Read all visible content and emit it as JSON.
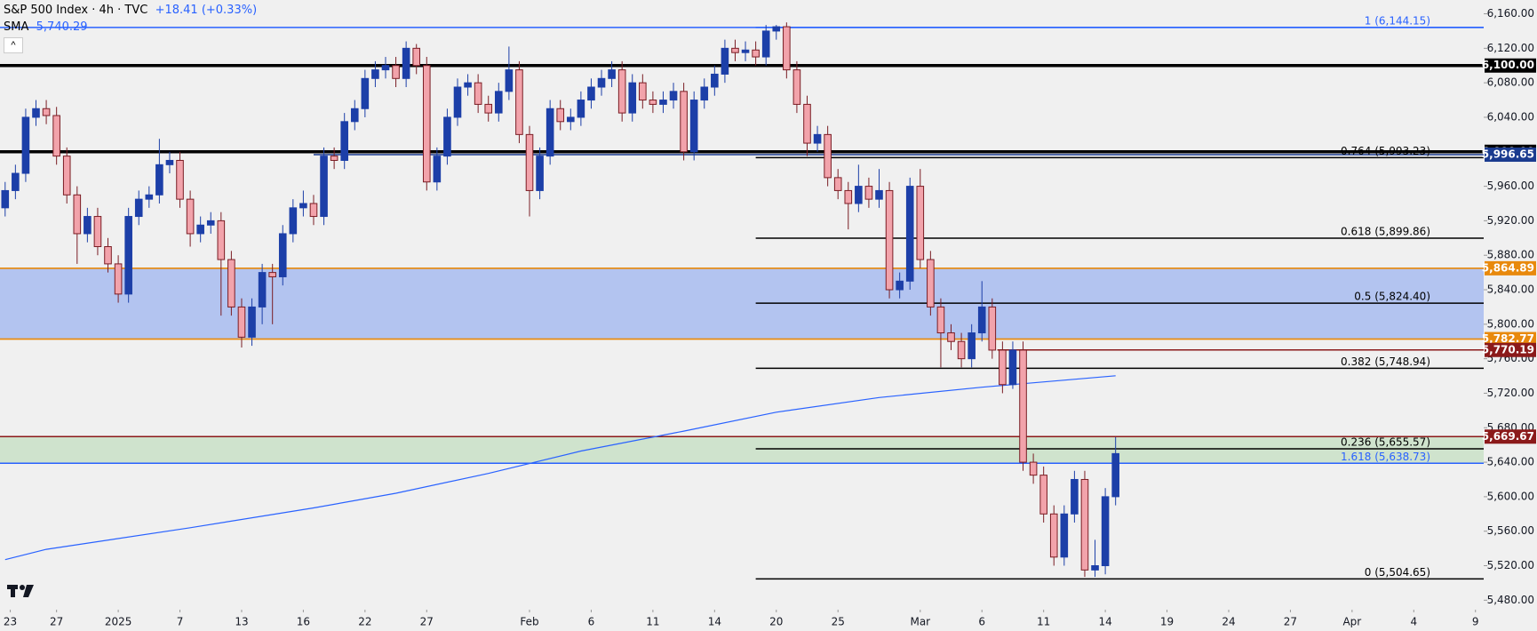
{
  "chart_data": {
    "type": "candlestick",
    "title": "S&P 500 Index · 4h · TVC",
    "change": "+18.41 (+0.33%)",
    "up_color": "#1c3fa8",
    "down_color": "#f2a3ab",
    "down_edge": "#7a1d24",
    "x": [
      0,
      1,
      2,
      3,
      4,
      5,
      6,
      7,
      8,
      9,
      10,
      11,
      12,
      13,
      14,
      15,
      16,
      17,
      18,
      19,
      20,
      21,
      22,
      23,
      24,
      25,
      26,
      27,
      28,
      29,
      30,
      31,
      32,
      33,
      34,
      35,
      36,
      37,
      38,
      39,
      40,
      41,
      42,
      43,
      44,
      45,
      46,
      47,
      48,
      49,
      50,
      51,
      52,
      53,
      54,
      55,
      56,
      57,
      58,
      59,
      60,
      61,
      62,
      63,
      64,
      65,
      66,
      67,
      68,
      69,
      70,
      71,
      72,
      73,
      74,
      75,
      76,
      77,
      78,
      79,
      80,
      81,
      82,
      83,
      84,
      85,
      86,
      87,
      88,
      89,
      90,
      91,
      92,
      93,
      94,
      95,
      96,
      97,
      98,
      99,
      100,
      101,
      102,
      103,
      104,
      105,
      106,
      107,
      108
    ],
    "open": [
      5935,
      5955,
      5975,
      6040,
      6050,
      6042,
      5995,
      5950,
      5905,
      5925,
      5890,
      5870,
      5835,
      5925,
      5945,
      5950,
      5985,
      5990,
      5945,
      5905,
      5915,
      5920,
      5875,
      5820,
      5785,
      5820,
      5860,
      5855,
      5905,
      5935,
      5940,
      5925,
      5995,
      5990,
      6035,
      6050,
      6085,
      6095,
      6100,
      6085,
      6120,
      6100,
      5965,
      5995,
      6040,
      6075,
      6080,
      6055,
      6045,
      6070,
      6095,
      6020,
      5955,
      5995,
      6050,
      6035,
      6040,
      6060,
      6075,
      6085,
      6095,
      6045,
      6080,
      6060,
      6055,
      6060,
      6070,
      6000,
      6060,
      6075,
      6090,
      6120,
      6115,
      6118,
      6110,
      6140,
      6145,
      6095,
      6055,
      6010,
      6020,
      5970,
      5955,
      5940,
      5960,
      5945,
      5955,
      5840,
      5850,
      5960,
      5875,
      5820,
      5790,
      5780,
      5760,
      5790,
      5820,
      5770,
      5730,
      5770,
      5640,
      5625,
      5580,
      5530,
      5580,
      5620,
      5515,
      5520,
      5600
    ],
    "high": [
      5965,
      5985,
      6050,
      6060,
      6060,
      6052,
      6005,
      5960,
      5935,
      5935,
      5900,
      5880,
      5935,
      5955,
      5960,
      6015,
      6000,
      6000,
      5955,
      5925,
      5930,
      5930,
      5885,
      5830,
      5830,
      5870,
      5870,
      5915,
      5945,
      5955,
      5950,
      6005,
      6005,
      6045,
      6060,
      6095,
      6105,
      6110,
      6110,
      6128,
      6125,
      6110,
      6005,
      6050,
      6085,
      6090,
      6090,
      6065,
      6080,
      6122,
      6105,
      6030,
      6005,
      6060,
      6060,
      6050,
      6070,
      6085,
      6095,
      6105,
      6105,
      6090,
      6090,
      6070,
      6070,
      6080,
      6080,
      6070,
      6085,
      6100,
      6130,
      6130,
      6128,
      6128,
      6147,
      6147,
      6150,
      6105,
      6065,
      6030,
      6030,
      5980,
      5965,
      5985,
      5970,
      5980,
      5965,
      5860,
      5970,
      5980,
      5885,
      5830,
      5800,
      5790,
      5800,
      5850,
      5830,
      5780,
      5780,
      5780,
      5650,
      5635,
      5590,
      5590,
      5630,
      5630,
      5550,
      5610,
      5669
    ],
    "low": [
      5925,
      5945,
      5965,
      6030,
      6032,
      5985,
      5940,
      5870,
      5895,
      5880,
      5860,
      5825,
      5825,
      5915,
      5935,
      5940,
      5975,
      5935,
      5890,
      5895,
      5905,
      5810,
      5810,
      5773,
      5775,
      5800,
      5800,
      5845,
      5895,
      5925,
      5915,
      5915,
      5980,
      5980,
      6025,
      6040,
      6075,
      6085,
      6075,
      6075,
      6090,
      5955,
      5955,
      5985,
      6030,
      6065,
      6045,
      6035,
      6035,
      6060,
      6010,
      5925,
      5945,
      5985,
      6025,
      6025,
      6030,
      6050,
      6065,
      6075,
      6035,
      6035,
      6050,
      6045,
      6045,
      6050,
      5990,
      5990,
      6050,
      6065,
      6080,
      6105,
      6105,
      6100,
      6100,
      6130,
      6085,
      6045,
      5995,
      6000,
      5960,
      5945,
      5910,
      5930,
      5935,
      5935,
      5830,
      5830,
      5840,
      5865,
      5810,
      5750,
      5770,
      5750,
      5750,
      5780,
      5760,
      5720,
      5725,
      5630,
      5615,
      5570,
      5520,
      5520,
      5570,
      5507,
      5507,
      5510,
      5590
    ],
    "close": [
      5955,
      5975,
      6040,
      6050,
      6042,
      5995,
      5950,
      5905,
      5925,
      5890,
      5870,
      5835,
      5925,
      5945,
      5950,
      5985,
      5990,
      5945,
      5905,
      5915,
      5920,
      5875,
      5820,
      5785,
      5820,
      5860,
      5855,
      5905,
      5935,
      5940,
      5925,
      5995,
      5990,
      6035,
      6050,
      6085,
      6095,
      6100,
      6085,
      6120,
      6100,
      5965,
      5995,
      6040,
      6075,
      6080,
      6055,
      6045,
      6070,
      6095,
      6020,
      5955,
      5995,
      6050,
      6035,
      6040,
      6060,
      6075,
      6085,
      6095,
      6045,
      6080,
      6060,
      6055,
      6060,
      6070,
      6000,
      6060,
      6075,
      6090,
      6120,
      6115,
      6118,
      6110,
      6140,
      6145,
      6095,
      6055,
      6010,
      6020,
      5970,
      5955,
      5940,
      5960,
      5945,
      5955,
      5840,
      5850,
      5960,
      5875,
      5820,
      5790,
      5780,
      5760,
      5790,
      5820,
      5770,
      5730,
      5770,
      5640,
      5625,
      5580,
      5530,
      5580,
      5620,
      5515,
      5520,
      5600,
      5650
    ],
    "sma": {
      "name": "SMA",
      "color": "#2962ff",
      "value_label": "5,740.29",
      "x": [
        0,
        4,
        18,
        30,
        38,
        47,
        56,
        66,
        75,
        85,
        95,
        108
      ],
      "values": [
        5527,
        5539,
        5564,
        5587,
        5604,
        5627,
        5653,
        5676,
        5698,
        5715,
        5727,
        5740.29
      ]
    },
    "xlim": [
      -0.5,
      143.8
    ],
    "xticks": [
      {
        "value": 0.5,
        "label": "23"
      },
      {
        "value": 5,
        "label": "27"
      },
      {
        "value": 11,
        "label": "2025"
      },
      {
        "value": 17,
        "label": "7"
      },
      {
        "value": 23,
        "label": "13"
      },
      {
        "value": 29,
        "label": "16"
      },
      {
        "value": 35,
        "label": "22"
      },
      {
        "value": 41,
        "label": "27"
      },
      {
        "value": 51,
        "label": "Feb"
      },
      {
        "value": 57,
        "label": "6"
      },
      {
        "value": 63,
        "label": "11"
      },
      {
        "value": 69,
        "label": "14"
      },
      {
        "value": 75,
        "label": "20"
      },
      {
        "value": 81,
        "label": "25"
      },
      {
        "value": 89,
        "label": "Mar"
      },
      {
        "value": 95,
        "label": "6"
      },
      {
        "value": 101,
        "label": "11"
      },
      {
        "value": 107,
        "label": "14"
      },
      {
        "value": 113,
        "label": "19"
      },
      {
        "value": 119,
        "label": "24"
      },
      {
        "value": 125,
        "label": "27"
      },
      {
        "value": 131,
        "label": "Apr"
      },
      {
        "value": 137,
        "label": "4"
      },
      {
        "value": 143,
        "label": "9"
      }
    ],
    "ylim": [
      5469,
      6176
    ],
    "yticks": [
      {
        "value": 5480,
        "label": "5,480.00"
      },
      {
        "value": 5520,
        "label": "5,520.00"
      },
      {
        "value": 5560,
        "label": "5,560.00"
      },
      {
        "value": 5600,
        "label": "5,600.00"
      },
      {
        "value": 5640,
        "label": "5,640.00"
      },
      {
        "value": 5680,
        "label": "5,680.00"
      },
      {
        "value": 5720,
        "label": "5,720.00"
      },
      {
        "value": 5760,
        "label": "5,760.00"
      },
      {
        "value": 5800,
        "label": "5,800.00"
      },
      {
        "value": 5840,
        "label": "5,840.00"
      },
      {
        "value": 5880,
        "label": "5,880.00"
      },
      {
        "value": 5920,
        "label": "5,920.00"
      },
      {
        "value": 5960,
        "label": "5,960.00"
      },
      {
        "value": 6000,
        "label": "6,000.00"
      },
      {
        "value": 6040,
        "label": "6,040.00"
      },
      {
        "value": 6080,
        "label": "6,080.00"
      },
      {
        "value": 6120,
        "label": "6,120.00"
      },
      {
        "value": 6160,
        "label": "6,160.00"
      }
    ],
    "zones": [
      {
        "from": 5782.77,
        "to": 5864.89,
        "color": "#b3c4f0",
        "edge": "#e8a33c",
        "edge_low": "#e8a33c"
      },
      {
        "from": 5638.73,
        "to": 5669.67,
        "color": "#cfe3cd",
        "edge": "#8b1a1a",
        "edge_low": "#2962ff"
      }
    ],
    "levels": [
      {
        "value": 6144.15,
        "color": "#2962ff",
        "x_from": -0.5
      },
      {
        "value": 6100,
        "label": "6,100.00",
        "color": "#000000",
        "bold": true,
        "x_from": -0.5
      },
      {
        "value": 6000,
        "label": "6,000.00",
        "color": "#000000",
        "bold": true,
        "x_from": -0.5
      },
      {
        "value": 5996.65,
        "label": "5,996.65",
        "color": "#1a3b8f",
        "x_from": 30
      },
      {
        "value": 5864.89,
        "label": "5,864.89",
        "color": "#e8890c",
        "x_from": -0.5
      },
      {
        "value": 5782.77,
        "label": "5,782.77",
        "color": "#e8890c",
        "x_from": -0.5
      },
      {
        "value": 5770.19,
        "label": "5,770.19",
        "color": "#8b1a1a",
        "x_from": 96.5
      },
      {
        "value": 5669.67,
        "label": "5,669.67",
        "color": "#8b1a1a",
        "x_from": -0.5
      }
    ],
    "fib": [
      {
        "value": 6144.15,
        "label": "1 (6,144.15)",
        "color": "#2962ff"
      },
      {
        "value": 5993.23,
        "label": "0.764 (5,993.23)",
        "color": "#000000"
      },
      {
        "value": 5899.86,
        "label": "0.618 (5,899.86)",
        "color": "#000000"
      },
      {
        "value": 5824.4,
        "label": "0.5 (5,824.40)",
        "color": "#000000"
      },
      {
        "value": 5748.94,
        "label": "0.382 (5,748.94)",
        "color": "#000000"
      },
      {
        "value": 5655.57,
        "label": "0.236 (5,655.57)",
        "color": "#000000"
      },
      {
        "value": 5638.73,
        "label": "1.618 (5,638.73)",
        "color": "#2962ff"
      },
      {
        "value": 5504.65,
        "label": "0 (5,504.65)",
        "color": "#000000"
      }
    ]
  }
}
